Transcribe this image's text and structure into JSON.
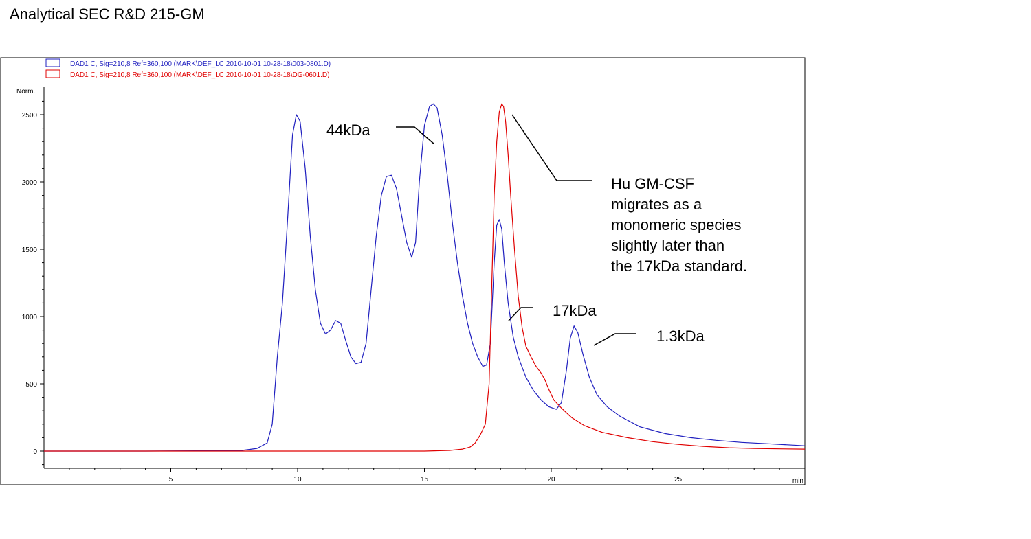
{
  "page": {
    "title": "Analytical SEC R&D 215-GM"
  },
  "chart_data": {
    "type": "line",
    "y_unit_label": "Norm.",
    "x_unit_label": "min",
    "xlim": [
      0,
      30
    ],
    "ylim": [
      -120,
      2650
    ],
    "x_ticks": [
      5,
      10,
      15,
      20,
      25
    ],
    "y_ticks": [
      0,
      500,
      1000,
      1500,
      2000,
      2500
    ],
    "grid": false,
    "legend_position": "top-left",
    "series": [
      {
        "name": "DAD1 C, Sig=210,8 Ref=360,100 (MARK\\DEF_LC 2010-10-01 10-28-18\\003-0801.D)",
        "color": "#1f1fbf",
        "x": [
          0,
          2,
          4,
          6,
          7.8,
          8.4,
          8.8,
          9.0,
          9.2,
          9.4,
          9.6,
          9.8,
          9.95,
          10.1,
          10.3,
          10.5,
          10.7,
          10.9,
          11.1,
          11.3,
          11.5,
          11.7,
          11.9,
          12.1,
          12.3,
          12.5,
          12.7,
          12.9,
          13.1,
          13.3,
          13.5,
          13.7,
          13.9,
          14.1,
          14.3,
          14.5,
          14.65,
          14.8,
          15.0,
          15.2,
          15.35,
          15.5,
          15.7,
          15.9,
          16.1,
          16.3,
          16.5,
          16.7,
          16.9,
          17.1,
          17.3,
          17.45,
          17.6,
          17.75,
          17.85,
          17.95,
          18.05,
          18.15,
          18.3,
          18.5,
          18.7,
          19.0,
          19.3,
          19.6,
          19.9,
          20.2,
          20.4,
          20.6,
          20.75,
          20.9,
          21.05,
          21.25,
          21.5,
          21.8,
          22.2,
          22.7,
          23.5,
          24.5,
          25.5,
          26.5,
          27.5,
          28.5,
          29.5,
          30
        ],
        "y": [
          0,
          0,
          0,
          2,
          5,
          20,
          60,
          200,
          700,
          1100,
          1700,
          2350,
          2500,
          2450,
          2100,
          1600,
          1200,
          950,
          870,
          900,
          970,
          950,
          820,
          700,
          650,
          660,
          800,
          1200,
          1600,
          1900,
          2040,
          2050,
          1950,
          1750,
          1550,
          1440,
          1550,
          2000,
          2420,
          2560,
          2580,
          2550,
          2350,
          2050,
          1700,
          1400,
          1150,
          950,
          800,
          700,
          630,
          640,
          800,
          1400,
          1680,
          1720,
          1650,
          1400,
          1100,
          850,
          700,
          550,
          450,
          380,
          330,
          310,
          360,
          600,
          840,
          930,
          880,
          720,
          550,
          420,
          330,
          260,
          180,
          130,
          100,
          80,
          65,
          55,
          45,
          40
        ]
      },
      {
        "name": "DAD1 C, Sig=210,8 Ref=360,100 (MARK\\DEF_LC 2010-10-01 10-28-18\\DG-0601.D)",
        "color": "#e00000",
        "x": [
          0,
          2,
          4,
          6,
          8,
          10,
          12,
          14,
          15,
          16,
          16.5,
          16.8,
          17.0,
          17.2,
          17.4,
          17.55,
          17.65,
          17.75,
          17.85,
          17.95,
          18.05,
          18.12,
          18.2,
          18.3,
          18.4,
          18.55,
          18.7,
          18.85,
          19.0,
          19.2,
          19.4,
          19.6,
          19.75,
          19.9,
          20.1,
          20.4,
          20.8,
          21.3,
          22.0,
          23.0,
          24.0,
          25.0,
          26.0,
          27.0,
          28.0,
          29.0,
          30
        ],
        "y": [
          0,
          0,
          0,
          0,
          0,
          0,
          0,
          0,
          0,
          5,
          15,
          30,
          60,
          120,
          200,
          500,
          1200,
          1900,
          2300,
          2520,
          2580,
          2560,
          2450,
          2200,
          1900,
          1500,
          1150,
          920,
          780,
          700,
          630,
          580,
          530,
          460,
          380,
          320,
          250,
          190,
          140,
          100,
          70,
          50,
          35,
          25,
          20,
          17,
          15
        ]
      }
    ],
    "annotations": [
      {
        "id": "a44",
        "label": "44kDa",
        "x_data": 15.2
      },
      {
        "id": "agm",
        "label": "Hu GM-CSF migrates as a monomeric species slightly later than the 17kDa standard.",
        "x_data": 18.1
      },
      {
        "id": "a17",
        "label": "17kDa",
        "x_data": 17.95
      },
      {
        "id": "a13",
        "label": "1.3kDa",
        "x_data": 20.9
      }
    ],
    "annotation_lines": [
      "Hu GM-CSF",
      "migrates as a",
      "monomeric species",
      "slightly later than",
      "the 17kDa standard."
    ]
  }
}
